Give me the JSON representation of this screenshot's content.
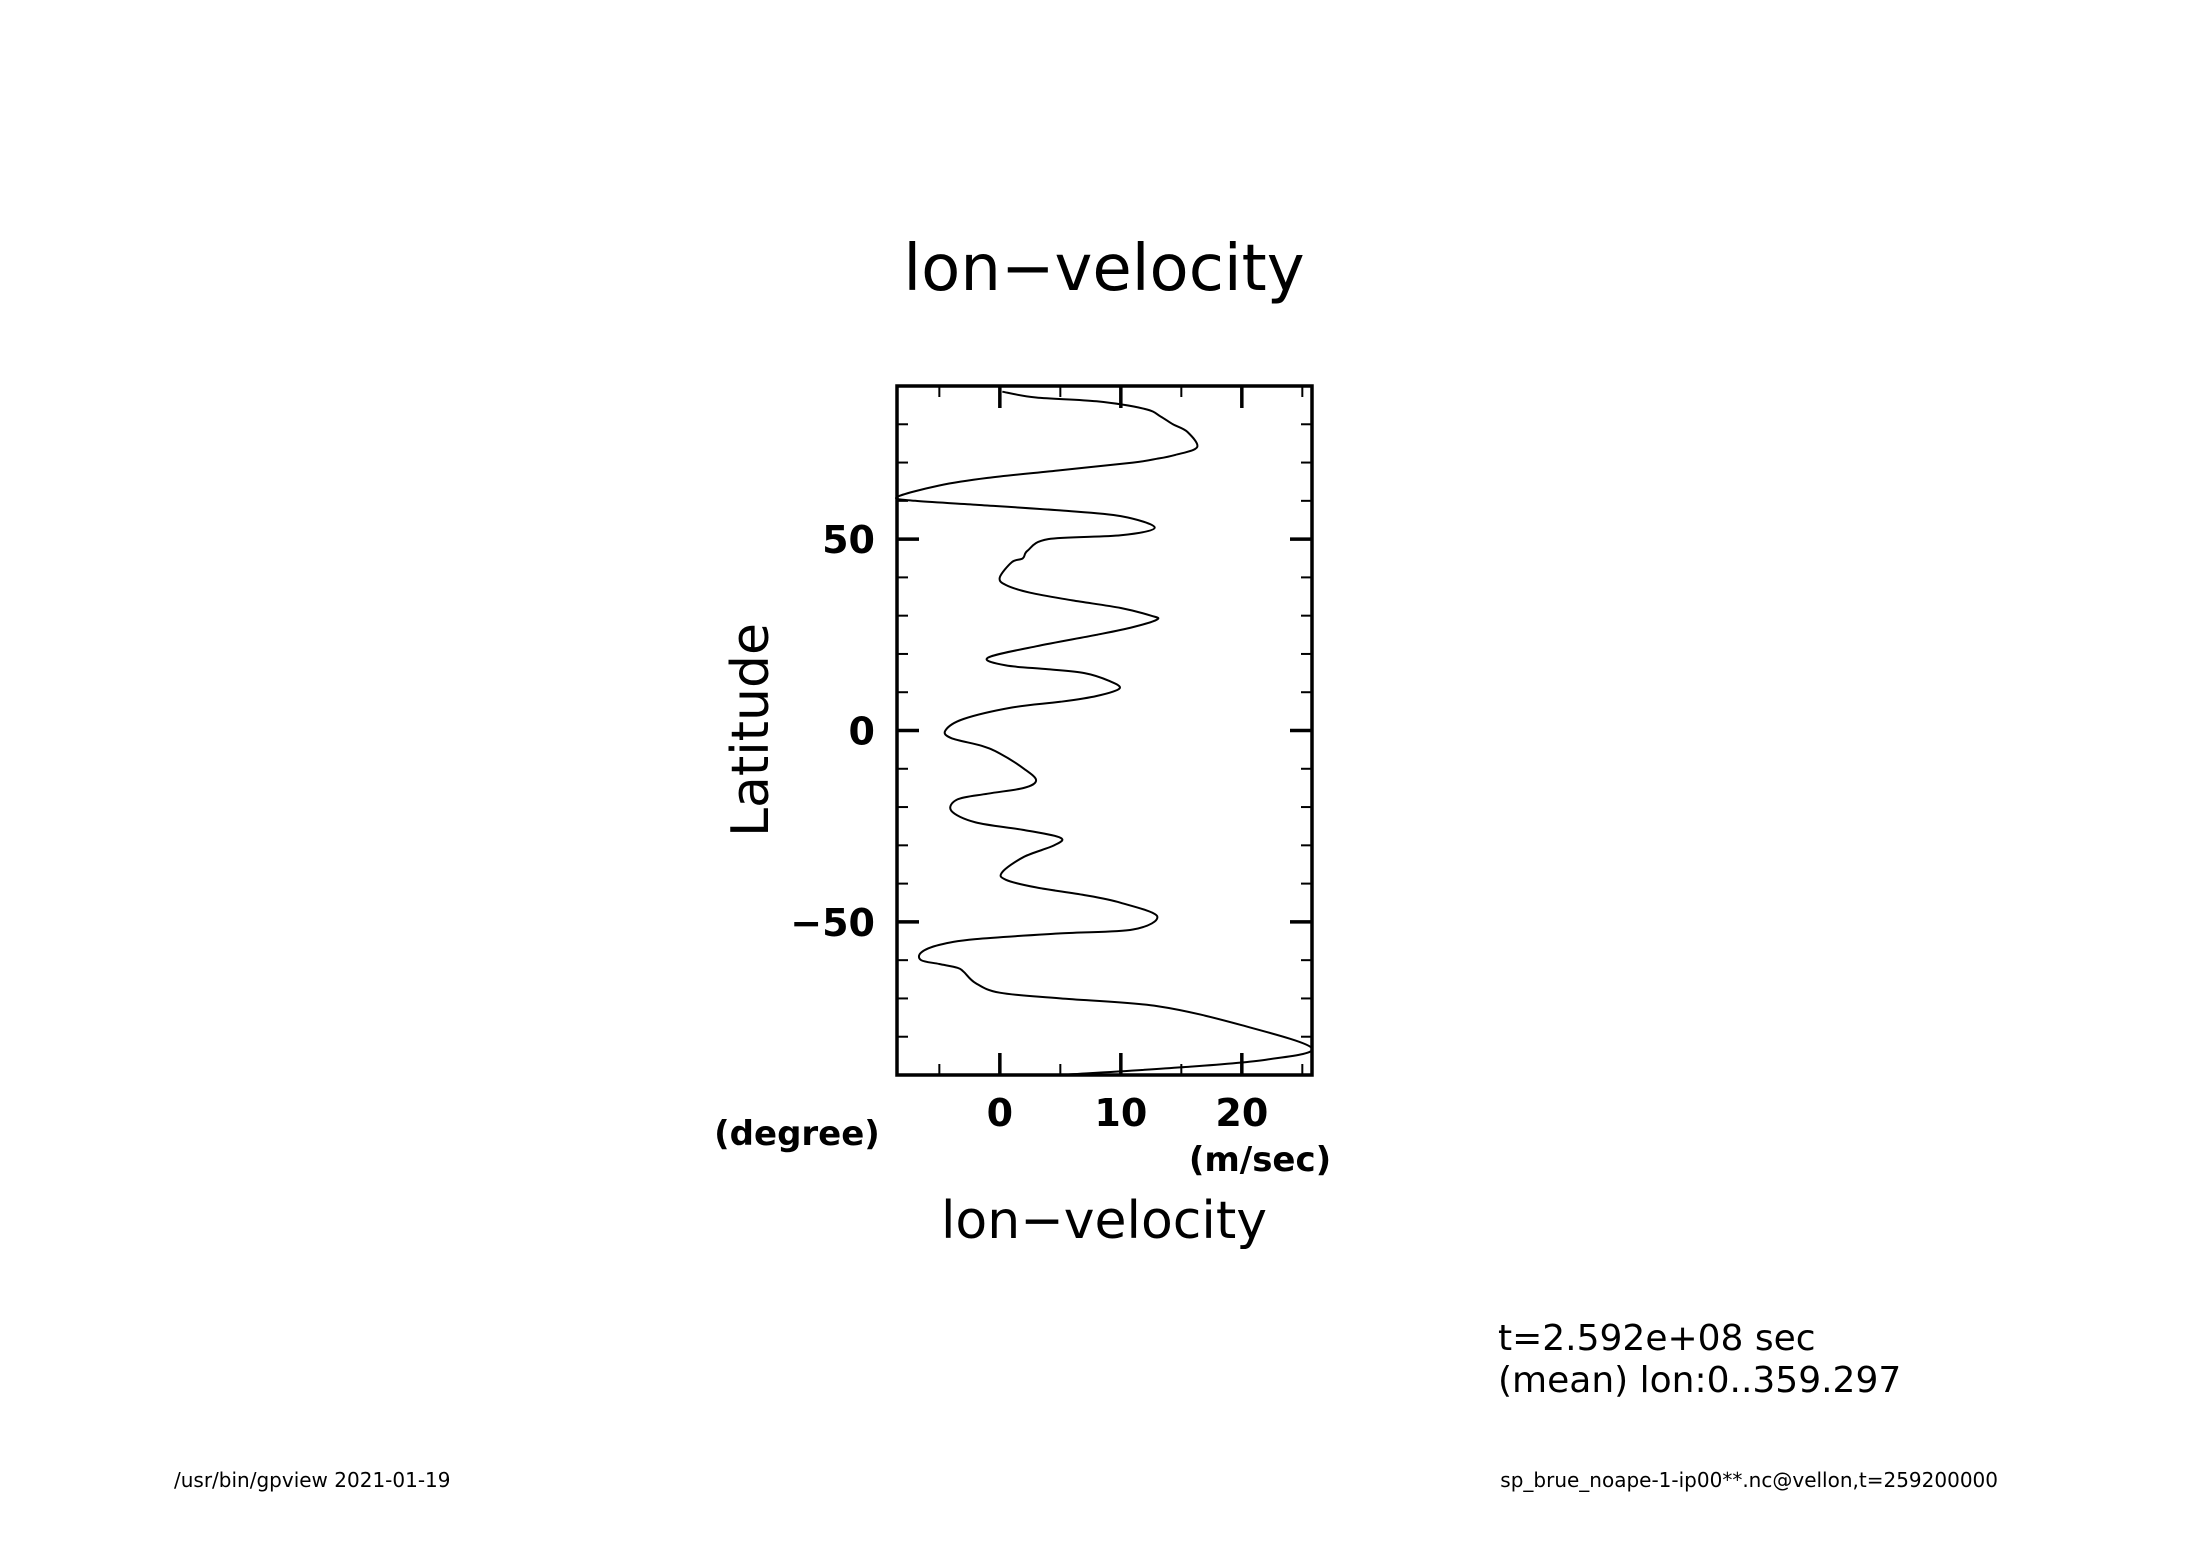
{
  "footer": {
    "left": "/usr/bin/gpview   2021-01-19",
    "right": "sp_brue_noape-1-ip00**.nc@vellon,t=259200000"
  },
  "info": {
    "line1": "t=2.592e+08 sec",
    "line2": "(mean) lon:0..359.297"
  },
  "chart_data": {
    "type": "line",
    "title": "lon−velocity",
    "xlabel": "lon−velocity",
    "ylabel": "Latitude",
    "xunit": "(m/sec)",
    "yunit": "(degree)",
    "xlim": [
      -8.5,
      25.8
    ],
    "ylim": [
      -90,
      90
    ],
    "xticks": [
      0,
      10,
      20
    ],
    "yticks": [
      -50,
      0,
      50
    ],
    "grid": false,
    "series": [
      {
        "x": [
          0.2,
          3,
          8,
          12,
          13.3,
          14.3,
          15.5,
          16.3,
          14.5,
          13,
          11,
          5,
          -1,
          -5,
          -8.5,
          -7,
          -2,
          5,
          10,
          12.8,
          10,
          4,
          2.3,
          1.9,
          1,
          0,
          0.5,
          2.5,
          6,
          10,
          12.5,
          13,
          11,
          8,
          3,
          -1,
          0.5,
          4,
          7,
          9,
          9.9,
          8,
          5,
          1,
          -3,
          -4.5,
          -4,
          -1.5,
          0,
          2,
          3,
          2,
          -1,
          -3.5,
          -4,
          -2,
          2,
          5,
          4.5,
          2,
          0.2,
          0.5,
          3,
          7,
          10,
          13,
          11,
          5,
          -2,
          -5,
          -6.5,
          -6.5,
          -5,
          -3.5,
          -3,
          -2,
          0,
          5,
          13,
          20,
          25.8,
          22,
          15,
          5
        ],
        "y": [
          88.5,
          87,
          86,
          84,
          82,
          80,
          78,
          74,
          72,
          71,
          70,
          68,
          66,
          64,
          61,
          60,
          59,
          57.5,
          56,
          53,
          51,
          50,
          47,
          45,
          44,
          40,
          38,
          36,
          34,
          32,
          30,
          29,
          27,
          25,
          22,
          19,
          17,
          16,
          15,
          13,
          11,
          9,
          7.5,
          6,
          3,
          0,
          -2,
          -4,
          -6,
          -10,
          -13,
          -15,
          -16.5,
          -18,
          -21,
          -24,
          -26,
          -28,
          -30,
          -33,
          -37,
          -39,
          -41,
          -43,
          -45,
          -48.5,
          -52,
          -53,
          -54.5,
          -56,
          -58,
          -60,
          -61,
          -62,
          -63,
          -66,
          -68.5,
          -70,
          -72,
          -77,
          -83,
          -86,
          -88,
          -90
        ]
      }
    ]
  }
}
